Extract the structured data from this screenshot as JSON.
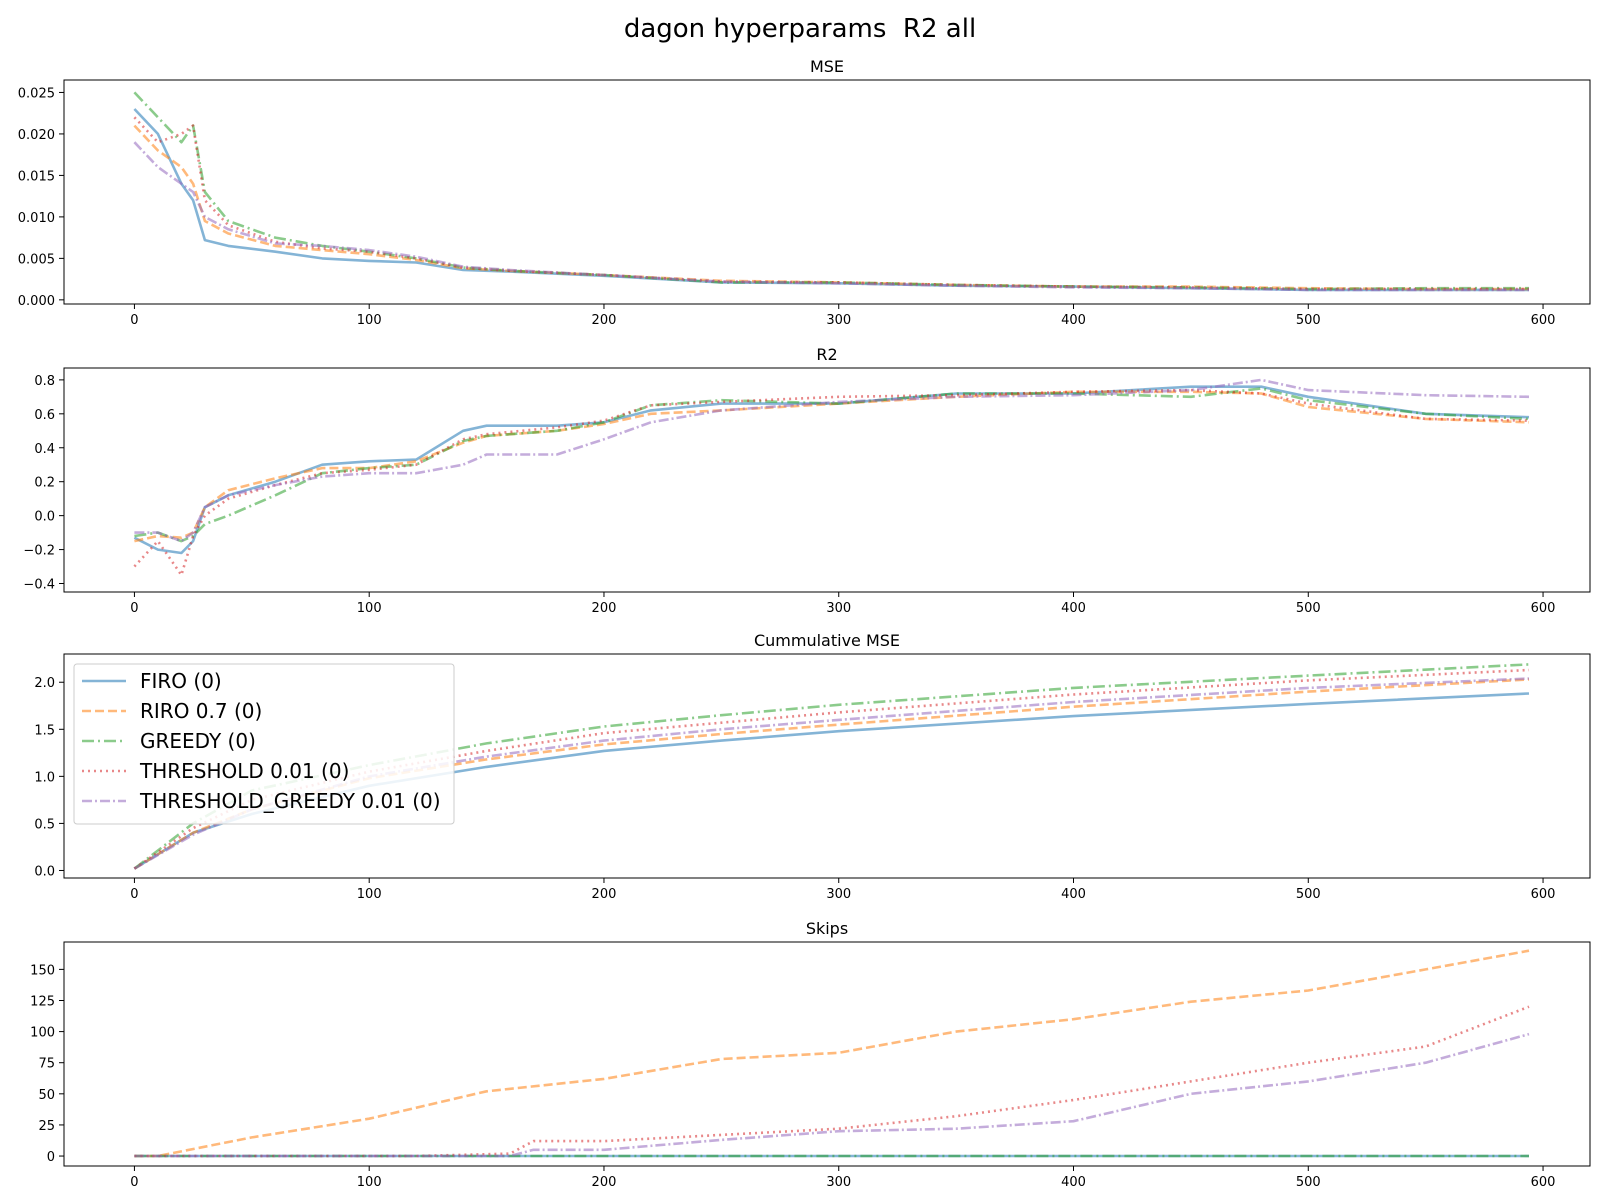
{
  "figure": {
    "title": "dagon hyperparams  R2 all"
  },
  "colors": {
    "FIRO (0)": "#1f77b4",
    "RIRO 0.7 (0)": "#ff7f0e",
    "GREEDY (0)": "#2ca02c",
    "THRESHOLD 0.01 (0)": "#d62728",
    "THRESHOLD_GREEDY 0.01 (0)": "#9467bd"
  },
  "chart_data": [
    {
      "type": "line",
      "title": "MSE",
      "xlim": [
        -30,
        620
      ],
      "ylim": [
        -0.0005,
        0.0265
      ],
      "xticks": [
        0,
        100,
        200,
        300,
        400,
        500,
        600
      ],
      "yticks": [
        0.0,
        0.005,
        0.01,
        0.015,
        0.02,
        0.025
      ],
      "ytick_labels": [
        "0.000",
        "0.005",
        "0.010",
        "0.015",
        "0.020",
        "0.025"
      ],
      "series": [
        {
          "name": "FIRO (0)",
          "x": [
            0,
            10,
            20,
            25,
            30,
            40,
            60,
            80,
            100,
            120,
            140,
            160,
            200,
            250,
            300,
            350,
            400,
            450,
            500,
            550,
            594
          ],
          "y": [
            0.023,
            0.02,
            0.014,
            0.012,
            0.0072,
            0.0065,
            0.0058,
            0.005,
            0.0047,
            0.0045,
            0.0036,
            0.0034,
            0.0029,
            0.0021,
            0.002,
            0.0017,
            0.0016,
            0.0014,
            0.0012,
            0.0012,
            0.0012
          ]
        },
        {
          "name": "RIRO 0.7 (0)",
          "x": [
            0,
            10,
            20,
            25,
            30,
            40,
            60,
            80,
            100,
            120,
            140,
            160,
            200,
            250,
            300,
            350,
            400,
            450,
            500,
            550,
            594
          ],
          "y": [
            0.021,
            0.018,
            0.016,
            0.014,
            0.0095,
            0.008,
            0.0065,
            0.006,
            0.0055,
            0.0048,
            0.0038,
            0.0035,
            0.003,
            0.0023,
            0.0021,
            0.0018,
            0.0016,
            0.0016,
            0.0014,
            0.0013,
            0.0013
          ]
        },
        {
          "name": "GREEDY (0)",
          "x": [
            0,
            10,
            20,
            25,
            30,
            40,
            60,
            80,
            100,
            120,
            140,
            160,
            200,
            250,
            300,
            350,
            400,
            450,
            500,
            550,
            594
          ],
          "y": [
            0.025,
            0.022,
            0.019,
            0.021,
            0.013,
            0.0095,
            0.0075,
            0.0065,
            0.0058,
            0.005,
            0.0039,
            0.0035,
            0.003,
            0.0021,
            0.0021,
            0.0018,
            0.0016,
            0.0015,
            0.0013,
            0.0014,
            0.0014
          ]
        },
        {
          "name": "THRESHOLD 0.01 (0)",
          "x": [
            0,
            10,
            20,
            25,
            30,
            40,
            60,
            80,
            100,
            120,
            140,
            160,
            200,
            250,
            300,
            350,
            400,
            450,
            500,
            550,
            594
          ],
          "y": [
            0.022,
            0.019,
            0.02,
            0.021,
            0.012,
            0.009,
            0.007,
            0.0062,
            0.0058,
            0.005,
            0.0039,
            0.0035,
            0.003,
            0.0022,
            0.0021,
            0.0018,
            0.0016,
            0.0015,
            0.0013,
            0.0013,
            0.0013
          ]
        },
        {
          "name": "THRESHOLD_GREEDY 0.01 (0)",
          "x": [
            0,
            10,
            20,
            25,
            30,
            40,
            60,
            80,
            100,
            120,
            140,
            160,
            200,
            250,
            300,
            350,
            400,
            450,
            500,
            550,
            594
          ],
          "y": [
            0.019,
            0.016,
            0.014,
            0.013,
            0.01,
            0.0085,
            0.0068,
            0.0065,
            0.006,
            0.0052,
            0.004,
            0.0036,
            0.003,
            0.0022,
            0.002,
            0.0017,
            0.0015,
            0.0014,
            0.0012,
            0.0012,
            0.0012
          ]
        }
      ]
    },
    {
      "type": "line",
      "title": "R2",
      "xlim": [
        -30,
        620
      ],
      "ylim": [
        -0.45,
        0.87
      ],
      "xticks": [
        0,
        100,
        200,
        300,
        400,
        500,
        600
      ],
      "yticks": [
        -0.4,
        -0.2,
        0.0,
        0.2,
        0.4,
        0.6,
        0.8
      ],
      "ytick_labels": [
        "−0.4",
        "−0.2",
        "0.0",
        "0.2",
        "0.4",
        "0.6",
        "0.8"
      ],
      "series": [
        {
          "name": "FIRO (0)",
          "x": [
            0,
            10,
            20,
            25,
            30,
            40,
            60,
            80,
            100,
            120,
            140,
            150,
            180,
            200,
            220,
            250,
            300,
            350,
            400,
            450,
            480,
            500,
            550,
            594
          ],
          "y": [
            -0.13,
            -0.2,
            -0.22,
            -0.15,
            0.05,
            0.12,
            0.2,
            0.3,
            0.32,
            0.33,
            0.5,
            0.53,
            0.53,
            0.55,
            0.62,
            0.66,
            0.66,
            0.72,
            0.72,
            0.76,
            0.76,
            0.7,
            0.6,
            0.58
          ]
        },
        {
          "name": "RIRO 0.7 (0)",
          "x": [
            0,
            10,
            20,
            25,
            30,
            40,
            60,
            80,
            100,
            120,
            140,
            150,
            180,
            200,
            220,
            250,
            300,
            350,
            400,
            450,
            480,
            500,
            550,
            594
          ],
          "y": [
            -0.15,
            -0.12,
            -0.13,
            -0.1,
            0.05,
            0.15,
            0.22,
            0.28,
            0.28,
            0.32,
            0.43,
            0.47,
            0.5,
            0.54,
            0.6,
            0.62,
            0.66,
            0.7,
            0.73,
            0.73,
            0.72,
            0.64,
            0.57,
            0.55
          ]
        },
        {
          "name": "GREEDY (0)",
          "x": [
            0,
            10,
            20,
            25,
            30,
            40,
            60,
            80,
            100,
            120,
            140,
            150,
            180,
            200,
            220,
            250,
            300,
            350,
            400,
            450,
            480,
            500,
            550,
            594
          ],
          "y": [
            -0.12,
            -0.1,
            -0.15,
            -0.12,
            -0.05,
            0.0,
            0.12,
            0.25,
            0.28,
            0.3,
            0.44,
            0.47,
            0.5,
            0.55,
            0.65,
            0.68,
            0.66,
            0.72,
            0.72,
            0.7,
            0.75,
            0.68,
            0.6,
            0.57
          ]
        },
        {
          "name": "THRESHOLD 0.01 (0)",
          "x": [
            0,
            10,
            20,
            25,
            30,
            40,
            60,
            80,
            100,
            120,
            140,
            150,
            180,
            200,
            220,
            250,
            300,
            350,
            400,
            450,
            480,
            500,
            550,
            594
          ],
          "y": [
            -0.3,
            -0.15,
            -0.35,
            -0.12,
            0.0,
            0.1,
            0.18,
            0.25,
            0.27,
            0.3,
            0.45,
            0.48,
            0.52,
            0.56,
            0.65,
            0.67,
            0.7,
            0.71,
            0.73,
            0.74,
            0.72,
            0.66,
            0.57,
            0.56
          ]
        },
        {
          "name": "THRESHOLD_GREEDY 0.01 (0)",
          "x": [
            0,
            10,
            20,
            25,
            30,
            40,
            60,
            80,
            100,
            120,
            140,
            150,
            180,
            200,
            220,
            250,
            300,
            350,
            400,
            450,
            480,
            500,
            550,
            594
          ],
          "y": [
            -0.1,
            -0.1,
            -0.15,
            -0.1,
            0.05,
            0.12,
            0.18,
            0.23,
            0.25,
            0.25,
            0.3,
            0.36,
            0.36,
            0.45,
            0.55,
            0.62,
            0.67,
            0.7,
            0.71,
            0.74,
            0.8,
            0.74,
            0.71,
            0.7
          ]
        }
      ]
    },
    {
      "type": "line",
      "title": "Cummulative MSE",
      "xlim": [
        -30,
        620
      ],
      "ylim": [
        -0.08,
        2.3
      ],
      "xticks": [
        0,
        100,
        200,
        300,
        400,
        500,
        600
      ],
      "yticks": [
        0.0,
        0.5,
        1.0,
        1.5,
        2.0
      ],
      "ytick_labels": [
        "0.0",
        "0.5",
        "1.0",
        "1.5",
        "2.0"
      ],
      "legend": {
        "placement": "upper-left",
        "entries": [
          "FIRO (0)",
          "RIRO 0.7 (0)",
          "GREEDY (0)",
          "THRESHOLD 0.01 (0)",
          "THRESHOLD_GREEDY 0.01 (0)"
        ]
      },
      "series": [
        {
          "name": "FIRO (0)",
          "x": [
            0,
            25,
            50,
            100,
            150,
            200,
            250,
            300,
            400,
            500,
            594
          ],
          "y": [
            0.02,
            0.4,
            0.6,
            0.9,
            1.1,
            1.27,
            1.38,
            1.48,
            1.64,
            1.77,
            1.88
          ]
        },
        {
          "name": "RIRO 0.7 (0)",
          "x": [
            0,
            25,
            50,
            100,
            150,
            200,
            250,
            300,
            400,
            500,
            594
          ],
          "y": [
            0.02,
            0.4,
            0.65,
            0.98,
            1.18,
            1.34,
            1.45,
            1.55,
            1.74,
            1.9,
            2.03
          ]
        },
        {
          "name": "GREEDY (0)",
          "x": [
            0,
            25,
            50,
            100,
            150,
            200,
            250,
            300,
            400,
            500,
            594
          ],
          "y": [
            0.02,
            0.5,
            0.85,
            1.12,
            1.35,
            1.53,
            1.65,
            1.76,
            1.94,
            2.07,
            2.19
          ]
        },
        {
          "name": "THRESHOLD 0.01 (0)",
          "x": [
            0,
            25,
            50,
            100,
            150,
            200,
            250,
            300,
            400,
            500,
            594
          ],
          "y": [
            0.02,
            0.45,
            0.75,
            1.05,
            1.27,
            1.46,
            1.57,
            1.68,
            1.87,
            2.02,
            2.13
          ]
        },
        {
          "name": "THRESHOLD_GREEDY 0.01 (0)",
          "x": [
            0,
            25,
            50,
            100,
            150,
            200,
            250,
            300,
            400,
            500,
            594
          ],
          "y": [
            0.02,
            0.38,
            0.65,
            1.0,
            1.21,
            1.38,
            1.5,
            1.6,
            1.79,
            1.94,
            2.04
          ]
        }
      ]
    },
    {
      "type": "line",
      "title": "Skips",
      "xlim": [
        -30,
        620
      ],
      "ylim": [
        -8,
        172
      ],
      "xticks": [
        0,
        100,
        200,
        300,
        400,
        500,
        600
      ],
      "yticks": [
        0,
        25,
        50,
        75,
        100,
        125,
        150
      ],
      "ytick_labels": [
        "0",
        "25",
        "50",
        "75",
        "100",
        "125",
        "150"
      ],
      "series": [
        {
          "name": "FIRO (0)",
          "x": [
            0,
            594
          ],
          "y": [
            0,
            0
          ]
        },
        {
          "name": "RIRO 0.7 (0)",
          "x": [
            0,
            10,
            50,
            100,
            150,
            200,
            250,
            300,
            350,
            400,
            450,
            500,
            550,
            594
          ],
          "y": [
            0,
            0,
            15,
            30,
            52,
            62,
            78,
            83,
            100,
            110,
            124,
            133,
            150,
            165
          ]
        },
        {
          "name": "GREEDY (0)",
          "x": [
            0,
            594
          ],
          "y": [
            0,
            0
          ]
        },
        {
          "name": "THRESHOLD 0.01 (0)",
          "x": [
            0,
            120,
            160,
            170,
            200,
            250,
            300,
            350,
            400,
            450,
            500,
            550,
            594
          ],
          "y": [
            0,
            0,
            2,
            12,
            12,
            17,
            22,
            32,
            45,
            60,
            75,
            88,
            120
          ]
        },
        {
          "name": "THRESHOLD_GREEDY 0.01 (0)",
          "x": [
            0,
            160,
            170,
            200,
            250,
            300,
            350,
            400,
            450,
            500,
            550,
            594
          ],
          "y": [
            0,
            0,
            5,
            5,
            13,
            20,
            22,
            28,
            50,
            60,
            75,
            98
          ]
        }
      ]
    }
  ]
}
